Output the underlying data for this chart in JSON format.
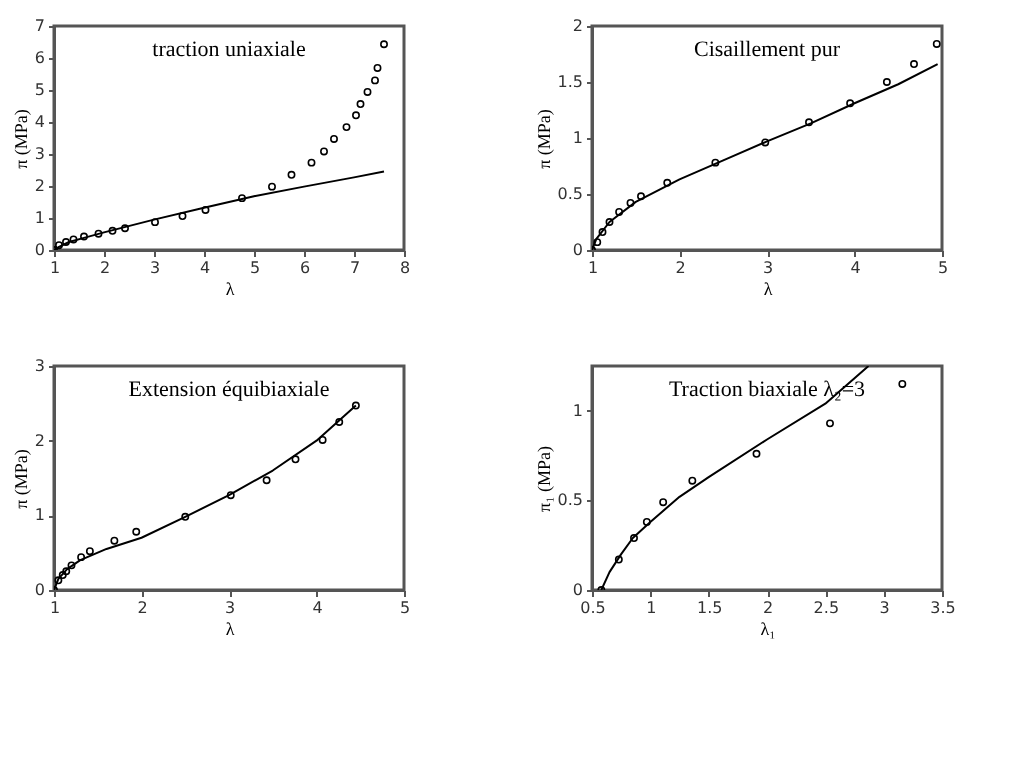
{
  "chart_data": [
    {
      "type": "scatter",
      "title": "traction uniaxiale",
      "xlabel": "λ",
      "ylabel": "π (MPa)",
      "xlim": [
        1,
        8
      ],
      "ylim": [
        0,
        7
      ],
      "xticks": [
        1,
        2,
        3,
        4,
        5,
        6,
        7,
        8
      ],
      "yticks": [
        0,
        1,
        2,
        3,
        4,
        5,
        6,
        7
      ],
      "grid": false,
      "series": [
        {
          "marker": "circle",
          "color": "#000000",
          "x": [
            1.0,
            1.1,
            1.24,
            1.39,
            1.6,
            1.89,
            2.17,
            2.42,
            3.02,
            3.57,
            4.03,
            4.76,
            5.36,
            5.75,
            6.15,
            6.4,
            6.6,
            6.85,
            7.04,
            7.13,
            7.27,
            7.42,
            7.47,
            7.6
          ],
          "values": [
            0,
            0.15,
            0.25,
            0.33,
            0.42,
            0.51,
            0.6,
            0.68,
            0.87,
            1.06,
            1.25,
            1.62,
            1.98,
            2.35,
            2.73,
            3.08,
            3.47,
            3.84,
            4.21,
            4.56,
            4.94,
            5.3,
            5.69,
            6.43
          ]
        },
        {
          "type": "line",
          "color": "#000000",
          "x": [
            1,
            1.1,
            1.3,
            1.6,
            2,
            3,
            4,
            5,
            6,
            7,
            7.6
          ],
          "values": [
            0,
            0.1,
            0.25,
            0.38,
            0.55,
            0.95,
            1.32,
            1.68,
            1.98,
            2.27,
            2.45
          ]
        }
      ]
    },
    {
      "type": "scatter",
      "title": "Cisaillement pur",
      "xlabel": "λ",
      "ylabel": "π (MPa)",
      "xlim": [
        1,
        5
      ],
      "ylim": [
        0,
        2
      ],
      "xticks": [
        1,
        2,
        3,
        4,
        5
      ],
      "yticks": [
        0,
        0.5,
        1,
        1.5,
        2
      ],
      "grid": false,
      "series": [
        {
          "marker": "circle",
          "color": "#000000",
          "x": [
            1,
            1.06,
            1.12,
            1.2,
            1.31,
            1.44,
            1.56,
            1.86,
            2.41,
            2.98,
            3.48,
            3.95,
            4.37,
            4.68,
            4.94
          ],
          "values": [
            0,
            0.07,
            0.16,
            0.25,
            0.34,
            0.42,
            0.48,
            0.6,
            0.78,
            0.96,
            1.14,
            1.31,
            1.5,
            1.66,
            1.84
          ]
        },
        {
          "type": "line",
          "color": "#000000",
          "x": [
            1,
            1.05,
            1.2,
            1.5,
            2,
            2.5,
            3,
            3.5,
            4,
            4.5,
            4.95
          ],
          "values": [
            0,
            0.1,
            0.25,
            0.43,
            0.63,
            0.8,
            0.97,
            1.13,
            1.31,
            1.48,
            1.66
          ]
        }
      ]
    },
    {
      "type": "scatter",
      "title": "Extension équibiaxiale",
      "xlabel": "λ",
      "ylabel": "π (MPa)",
      "xlim": [
        1,
        5
      ],
      "ylim": [
        0,
        3
      ],
      "xticks": [
        1,
        2,
        3,
        4,
        5
      ],
      "yticks": [
        0,
        1,
        2,
        3
      ],
      "grid": false,
      "series": [
        {
          "marker": "circle",
          "color": "#000000",
          "x": [
            1,
            1.05,
            1.1,
            1.14,
            1.2,
            1.31,
            1.41,
            1.69,
            1.94,
            2.5,
            3.02,
            3.43,
            3.76,
            4.07,
            4.26,
            4.45
          ],
          "values": [
            0,
            0.13,
            0.2,
            0.25,
            0.33,
            0.44,
            0.52,
            0.66,
            0.78,
            0.98,
            1.27,
            1.47,
            1.75,
            2.01,
            2.25,
            2.47
          ]
        },
        {
          "type": "line",
          "color": "#000000",
          "x": [
            1,
            1.05,
            1.15,
            1.3,
            1.6,
            2,
            2.5,
            3,
            3.5,
            4,
            4.45
          ],
          "values": [
            0,
            0.15,
            0.28,
            0.4,
            0.55,
            0.7,
            0.98,
            1.27,
            1.6,
            2.0,
            2.47
          ]
        }
      ]
    },
    {
      "type": "scatter",
      "title": "Traction biaxiale λ₂=3",
      "xlabel": "λ₁",
      "ylabel": "π₁ (MPa)",
      "xlim": [
        0.5,
        3.5
      ],
      "ylim": [
        0,
        1.25
      ],
      "xticks": [
        0.5,
        1,
        1.5,
        2,
        2.5,
        3,
        3.5
      ],
      "yticks": [
        0,
        0.5,
        1
      ],
      "grid": false,
      "series": [
        {
          "marker": "circle",
          "color": "#000000",
          "x": [
            0.58,
            0.73,
            0.86,
            0.97,
            1.11,
            1.36,
            1.91,
            2.54,
            3.16
          ],
          "values": [
            0,
            0.17,
            0.29,
            0.38,
            0.49,
            0.61,
            0.76,
            0.93,
            1.15
          ]
        },
        {
          "type": "line",
          "color": "#000000",
          "x": [
            0.58,
            0.65,
            0.75,
            0.85,
            1,
            1.25,
            1.5,
            2,
            2.5,
            2.87
          ],
          "values": [
            0,
            0.1,
            0.2,
            0.29,
            0.38,
            0.52,
            0.63,
            0.84,
            1.04,
            1.25
          ]
        }
      ]
    }
  ]
}
